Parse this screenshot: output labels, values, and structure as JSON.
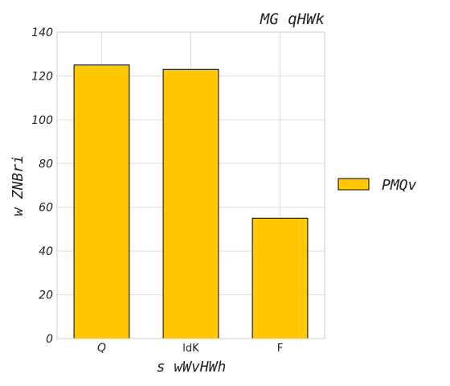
{
  "chart_data": {
    "type": "bar",
    "title": "MG qHWk",
    "xlabel": "s wWvHWh",
    "ylabel": "w ZNBri",
    "categories": [
      "Q",
      "ldK",
      "F"
    ],
    "series": [
      {
        "name": "PMQv",
        "values": [
          125,
          123,
          55
        ]
      }
    ],
    "ylim": [
      0,
      140
    ],
    "yticks": [
      0,
      20,
      40,
      60,
      80,
      100,
      120,
      140
    ],
    "grid": true,
    "legend_position": "right",
    "colors": {
      "bar_fill": "#ffc800",
      "bar_stroke": "#000000",
      "grid": "#dddddd",
      "axes_frame": "#cccccc"
    }
  }
}
